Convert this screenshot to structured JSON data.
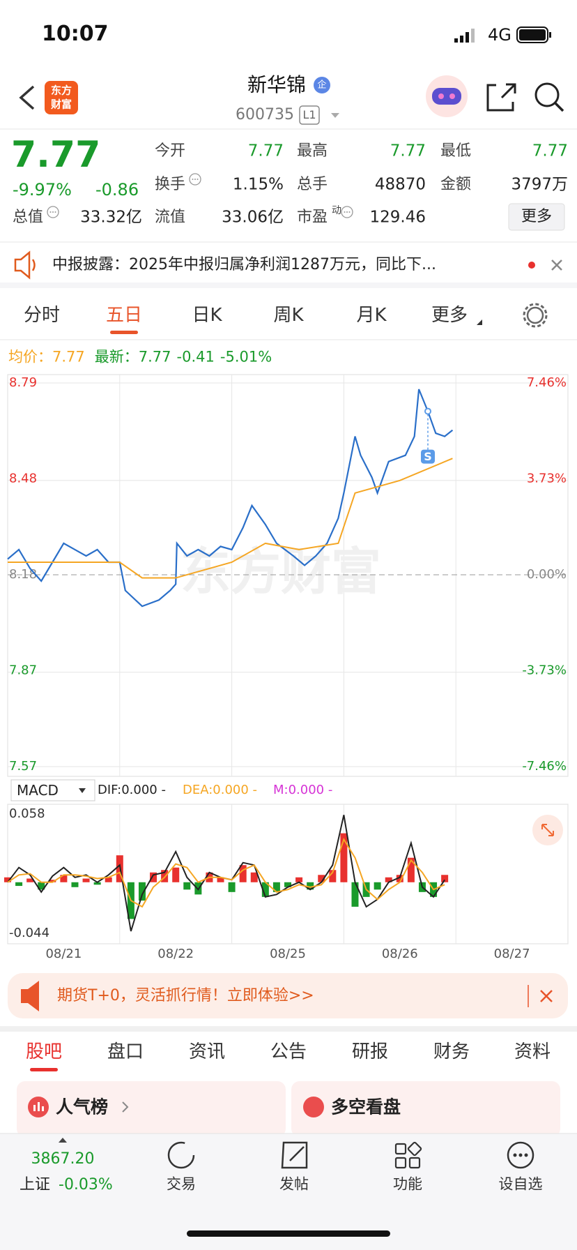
{
  "status_bar": {
    "time": "10:07",
    "network": "4G"
  },
  "header": {
    "logo": [
      "东方",
      "财富"
    ],
    "title": "新华锦",
    "badge": "企",
    "code": "600735",
    "level": "L1"
  },
  "quote": {
    "price": "7.77",
    "change_pct": "-9.97%",
    "change": "-0.86",
    "fields": [
      {
        "label": "今开",
        "value": "7.77"
      },
      {
        "label": "最高",
        "value": "7.77"
      },
      {
        "label": "最低",
        "value": "7.77"
      },
      {
        "label": "换手",
        "value": "1.15%"
      },
      {
        "label": "总手",
        "value": "48870"
      },
      {
        "label": "金额",
        "value": "3797万"
      },
      {
        "label": "总值",
        "value": "33.32亿"
      },
      {
        "label": "流值",
        "value": "33.06亿"
      },
      {
        "label": "市盈",
        "sup": "动",
        "value": "129.46"
      }
    ],
    "more": "更多"
  },
  "notice": {
    "text": "中报披露：2025年中报归属净利润1287万元，同比下..."
  },
  "tabs": {
    "items": [
      "分时",
      "五日",
      "日K",
      "周K",
      "月K",
      "更多"
    ],
    "active": 1
  },
  "chart_info": {
    "avg_label": "均价：",
    "avg": "7.77",
    "last_label": "最新：",
    "last": "7.77",
    "last_change": "-0.41",
    "last_change_pct": "-5.01%"
  },
  "chart_data": [
    {
      "type": "line",
      "watermark": "东方财富",
      "xlim": [
        0,
        5
      ],
      "ylim": [
        7.57,
        8.79
      ],
      "yticks": [
        8.79,
        8.48,
        8.18,
        7.87,
        7.57
      ],
      "y2lim": [
        -7.46,
        7.46
      ],
      "y2ticks": [
        {
          "value": 7.46,
          "label": "7.46%"
        },
        {
          "value": 3.73,
          "label": "3.73%"
        },
        {
          "value": 0,
          "label": "0.00%"
        },
        {
          "value": -3.73,
          "label": "-3.73%"
        },
        {
          "value": -7.46,
          "label": "-7.46%"
        }
      ],
      "categories": [
        "08/21",
        "08/22",
        "08/25",
        "08/26",
        "08/27"
      ],
      "series": [
        {
          "color": "#2a6fc9",
          "x": [
            0,
            0.1,
            0.2,
            0.3,
            0.4,
            0.5,
            0.6,
            0.7,
            0.8,
            0.9,
            1.0,
            1.05,
            1.2,
            1.35,
            1.45,
            1.5,
            1.51,
            1.6,
            1.7,
            1.8,
            1.9,
            2.0,
            2.1,
            2.18,
            2.3,
            2.4,
            2.55,
            2.65,
            2.75,
            2.85,
            2.95,
            3.0,
            3.1,
            3.15,
            3.25,
            3.3,
            3.4,
            3.55,
            3.63,
            3.67,
            3.75,
            3.82,
            3.9,
            3.97
          ],
          "values": [
            8.23,
            8.26,
            8.2,
            8.16,
            8.22,
            8.28,
            8.26,
            8.24,
            8.26,
            8.22,
            8.22,
            8.13,
            8.08,
            8.1,
            8.13,
            8.15,
            8.28,
            8.24,
            8.26,
            8.24,
            8.27,
            8.26,
            8.33,
            8.4,
            8.34,
            8.28,
            8.24,
            8.21,
            8.24,
            8.28,
            8.36,
            8.44,
            8.62,
            8.56,
            8.49,
            8.44,
            8.54,
            8.56,
            8.62,
            8.77,
            8.7,
            8.63,
            8.62,
            8.64
          ]
        },
        {
          "color": "#f5a623",
          "x": [
            0,
            1.0,
            1.2,
            1.5,
            2.0,
            2.3,
            2.6,
            2.95,
            3.1,
            3.5,
            3.97
          ],
          "values": [
            8.22,
            8.22,
            8.17,
            8.17,
            8.22,
            8.28,
            8.26,
            8.28,
            8.44,
            8.48,
            8.55
          ]
        }
      ],
      "signal": {
        "label": "S",
        "x": 3.75,
        "value": 8.7
      }
    },
    {
      "type": "macd",
      "selector": "MACD",
      "legend": [
        "DIF:0.000 -",
        "DEA:0.000 -",
        "M:0.000 -"
      ],
      "xlim": [
        0,
        5
      ],
      "ylim": [
        -0.044,
        0.058
      ],
      "yticks": [
        0.058,
        -0.044
      ],
      "x": [
        0,
        0.1,
        0.2,
        0.3,
        0.4,
        0.5,
        0.6,
        0.7,
        0.8,
        0.9,
        1.0,
        1.1,
        1.2,
        1.3,
        1.4,
        1.5,
        1.6,
        1.7,
        1.8,
        1.9,
        2.0,
        2.1,
        2.2,
        2.3,
        2.4,
        2.5,
        2.6,
        2.7,
        2.8,
        2.9,
        3.0,
        3.1,
        3.2,
        3.3,
        3.4,
        3.5,
        3.6,
        3.7,
        3.8,
        3.9
      ],
      "series": [
        {
          "color": "#222222",
          "values": [
            0.0,
            0.012,
            0.006,
            -0.008,
            0.005,
            0.012,
            0.004,
            0.006,
            0.0,
            0.006,
            0.014,
            -0.04,
            -0.01,
            0.006,
            0.008,
            0.025,
            0.004,
            -0.006,
            0.008,
            0.004,
            0.002,
            0.016,
            0.014,
            -0.012,
            -0.01,
            -0.004,
            0.0,
            -0.006,
            0.0,
            0.014,
            0.055,
            0.0,
            -0.02,
            -0.014,
            0.0,
            0.004,
            0.032,
            -0.004,
            -0.012,
            0.002
          ]
        },
        {
          "color": "#f5a623",
          "values": [
            0.0,
            0.006,
            0.007,
            0.0,
            0.0,
            0.006,
            0.006,
            0.005,
            0.003,
            0.004,
            0.008,
            -0.015,
            -0.02,
            -0.004,
            0.004,
            0.015,
            0.012,
            0.0,
            0.004,
            0.004,
            0.002,
            0.01,
            0.014,
            0.0,
            -0.008,
            -0.006,
            -0.002,
            -0.004,
            -0.002,
            0.008,
            0.035,
            0.02,
            -0.006,
            -0.014,
            -0.006,
            0.0,
            0.018,
            0.008,
            -0.006,
            -0.002
          ]
        }
      ],
      "histogram": {
        "up_color": "#e8312e",
        "down_color": "#1a9a2b",
        "values": [
          0.004,
          -0.003,
          0.003,
          -0.006,
          0.002,
          0.006,
          -0.004,
          0.003,
          -0.002,
          0.004,
          0.022,
          -0.03,
          -0.015,
          0.008,
          0.01,
          0.012,
          -0.006,
          -0.01,
          0.008,
          0.004,
          -0.008,
          0.014,
          0.008,
          -0.012,
          -0.008,
          -0.004,
          0.004,
          -0.006,
          0.006,
          0.01,
          0.04,
          -0.02,
          -0.012,
          -0.006,
          0.004,
          0.006,
          0.02,
          -0.008,
          -0.012,
          0.006
        ]
      }
    }
  ],
  "banner": {
    "text": "期货T+0，灵活抓行情！立即体验>>"
  },
  "bottom_tabs": {
    "items": [
      "股吧",
      "盘口",
      "资讯",
      "公告",
      "研报",
      "财务",
      "资料"
    ],
    "active": 0
  },
  "cards": [
    "人气榜",
    "多空看盘"
  ],
  "footer": {
    "index_value": "3867.20",
    "index_name": "上证",
    "index_change": "-0.03%",
    "items": [
      "交易",
      "发帖",
      "功能",
      "设自选"
    ]
  }
}
